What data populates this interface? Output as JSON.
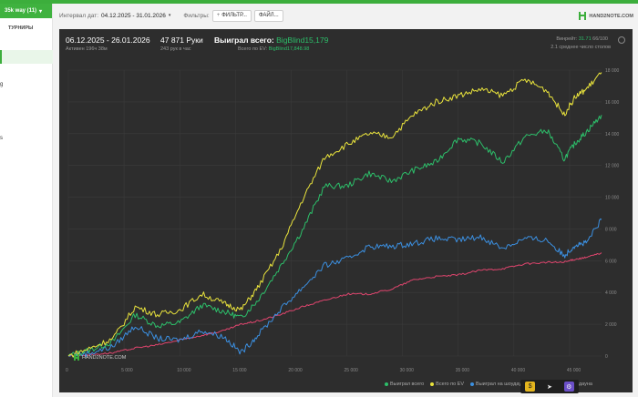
{
  "sidebar": {
    "group_label": "35k way (11)",
    "tab_label": "ТУРНИРЫ",
    "frag_1": "g",
    "frag_2": "s"
  },
  "filterbar": {
    "interval_label": "Интервал дат:",
    "interval_value": "04.12.2025 - 31.01.2026",
    "filters_label": "Фильтры:",
    "filter_button": "ФИЛЬТР...",
    "file_button": "ФАЙЛ..."
  },
  "brand": "HAND2NOTE.COM",
  "report": {
    "date_range": "06.12.2025 - 26.01.2026",
    "active": "Активен 196ч 38м",
    "hands": "47 871 Руки",
    "hands_rate": "243 рук в час",
    "won_label": "Выиграл всего:",
    "won_value": "BigBlind15,179",
    "ev_label": "Всего по EV:",
    "ev_value": "BigBlind17,848.98",
    "winrate_label": "Винрейт:",
    "winrate_value": "31.71",
    "winrate_rest": "66/100",
    "tables": "2.1 среднее число столов",
    "watermark": "HAND2NOTE.COM"
  },
  "colors": {
    "won": "#2dbf6a",
    "ev": "#e9e33c",
    "showdown": "#3b8fe0",
    "no_showdown": "#e0456e",
    "brand_green": "#3cae3c"
  },
  "chart_data": {
    "type": "line",
    "xlim": [
      0,
      47871
    ],
    "ylim": [
      0,
      18000
    ],
    "x_ticks": [
      "0",
      "5 000",
      "10 000",
      "15 000",
      "20 000",
      "25 000",
      "30 000",
      "35 000",
      "40 000",
      "45 000"
    ],
    "y_ticks": [
      "0",
      "2 000",
      "4 000",
      "6 000",
      "8 000",
      "10 000",
      "12 000",
      "14 000",
      "16 000",
      "18 000"
    ],
    "legend": [
      "Выиграл всего",
      "Всего по EV",
      "Выиграл на шоудауне",
      "Выиграл без шоудауна"
    ],
    "legend_position": "bottom-right",
    "grid": true,
    "x": [
      0,
      2000,
      4000,
      6000,
      8000,
      10000,
      12000,
      14000,
      15500,
      17000,
      19000,
      21000,
      23000,
      25000,
      27000,
      29000,
      31000,
      33000,
      35000,
      37000,
      39000,
      41000,
      43000,
      44500,
      45500,
      46500,
      47871
    ],
    "series": [
      {
        "name": "Выиграл всего",
        "values": [
          0,
          400,
          900,
          2600,
          1900,
          2100,
          3200,
          2800,
          2400,
          3500,
          5600,
          7900,
          10700,
          10700,
          11500,
          11000,
          11700,
          12200,
          13700,
          13400,
          12200,
          13800,
          14200,
          12400,
          13400,
          14100,
          15179
        ]
      },
      {
        "name": "Всего по EV",
        "values": [
          0,
          500,
          1100,
          3100,
          2600,
          2900,
          3900,
          3300,
          2900,
          4300,
          6600,
          9800,
          12500,
          13300,
          14000,
          13800,
          15200,
          16000,
          16400,
          16800,
          16400,
          17400,
          16700,
          15200,
          16300,
          16800,
          17849
        ]
      },
      {
        "name": "Выиграл на шоудауне",
        "values": [
          0,
          200,
          600,
          1900,
          1100,
          1000,
          1600,
          1200,
          200,
          1300,
          2900,
          4300,
          5700,
          6100,
          6900,
          6900,
          7100,
          7400,
          7300,
          7500,
          6800,
          7400,
          7300,
          6300,
          7000,
          7100,
          8600
        ]
      },
      {
        "name": "Выиграл без шоудауна",
        "values": [
          0,
          100,
          200,
          500,
          700,
          1000,
          1300,
          1600,
          2000,
          2200,
          2600,
          3100,
          3500,
          3900,
          3900,
          4200,
          4800,
          5000,
          5100,
          5400,
          5500,
          5800,
          5900,
          5900,
          6100,
          6200,
          6500
        ]
      }
    ]
  },
  "toolbar": {
    "item1": "$",
    "item2": "➤",
    "item3": "⚙"
  }
}
